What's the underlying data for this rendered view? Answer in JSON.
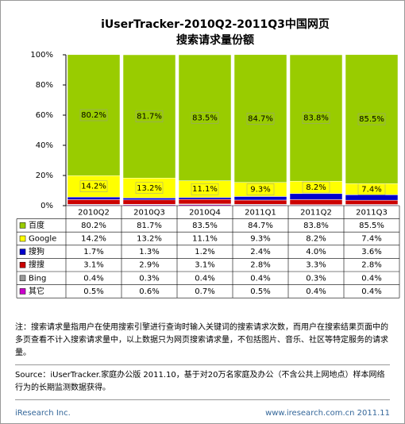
{
  "chart_data": {
    "type": "stacked_bar",
    "title": [
      "iUserTracker-2010Q2-2011Q3中国网页",
      "搜索请求量份额"
    ],
    "categories": [
      "2010Q2",
      "2010Q3",
      "2010Q4",
      "2011Q1",
      "2011Q2",
      "2011Q3"
    ],
    "series": [
      {
        "name": "百度",
        "color": "#99cc00",
        "data_labels": true,
        "values": [
          80.2,
          81.7,
          83.5,
          84.7,
          83.8,
          85.5
        ],
        "value_labels": [
          "80.2%",
          "81.7%",
          "83.5%",
          "84.7%",
          "83.8%",
          "85.5%"
        ]
      },
      {
        "name": "Google",
        "color": "#ffff00",
        "data_labels": true,
        "values": [
          14.2,
          13.2,
          11.1,
          9.3,
          8.2,
          7.4
        ],
        "value_labels": [
          "14.2%",
          "13.2%",
          "11.1%",
          "9.3%",
          "8.2%",
          "7.4%"
        ]
      },
      {
        "name": "搜狗",
        "color": "#0000cc",
        "values": [
          1.7,
          1.3,
          1.2,
          2.4,
          4.0,
          3.6
        ],
        "value_labels": [
          "1.7%",
          "1.3%",
          "1.2%",
          "2.4%",
          "4.0%",
          "3.6%"
        ]
      },
      {
        "name": "搜搜",
        "color": "#cc0000",
        "values": [
          3.1,
          2.9,
          3.1,
          2.8,
          3.3,
          2.8
        ],
        "value_labels": [
          "3.1%",
          "2.9%",
          "3.1%",
          "2.8%",
          "3.3%",
          "2.8%"
        ]
      },
      {
        "name": "Bing",
        "color": "#999999",
        "values": [
          0.4,
          0.3,
          0.4,
          0.4,
          0.3,
          0.4
        ],
        "value_labels": [
          "0.4%",
          "0.3%",
          "0.4%",
          "0.4%",
          "0.3%",
          "0.4%"
        ]
      },
      {
        "name": "其它",
        "color": "#cc00cc",
        "values": [
          0.5,
          0.6,
          0.7,
          0.5,
          0.4,
          0.4
        ],
        "value_labels": [
          "0.5%",
          "0.6%",
          "0.7%",
          "0.5%",
          "0.4%",
          "0.4%"
        ]
      }
    ],
    "ylim": [
      0,
      100
    ],
    "yticks": [
      {
        "value": 0,
        "label": "0%"
      },
      {
        "value": 20,
        "label": "20%"
      },
      {
        "value": 40,
        "label": "40%"
      },
      {
        "value": 60,
        "label": "60%"
      },
      {
        "value": 80,
        "label": "80%"
      },
      {
        "value": 100,
        "label": "100%"
      }
    ]
  },
  "note": "注：搜索请求量指用户在使用搜索引擎进行查询时输入关键词的搜索请求次数，而用户在搜索结果页面中的多页查看不计入搜索请求量中，以上数据只为网页搜索请求量，不包括图片、音乐、社区等特定服务的请求量。",
  "source": "Source：iUserTracker.家庭办公版 2011.10，基于对20万名家庭及办公（不含公共上网地点）样本网络行为的长期监测数据获得。",
  "footer": {
    "left": "iResearch Inc.",
    "right": "www.iresearch.com.cn 2011.11"
  }
}
